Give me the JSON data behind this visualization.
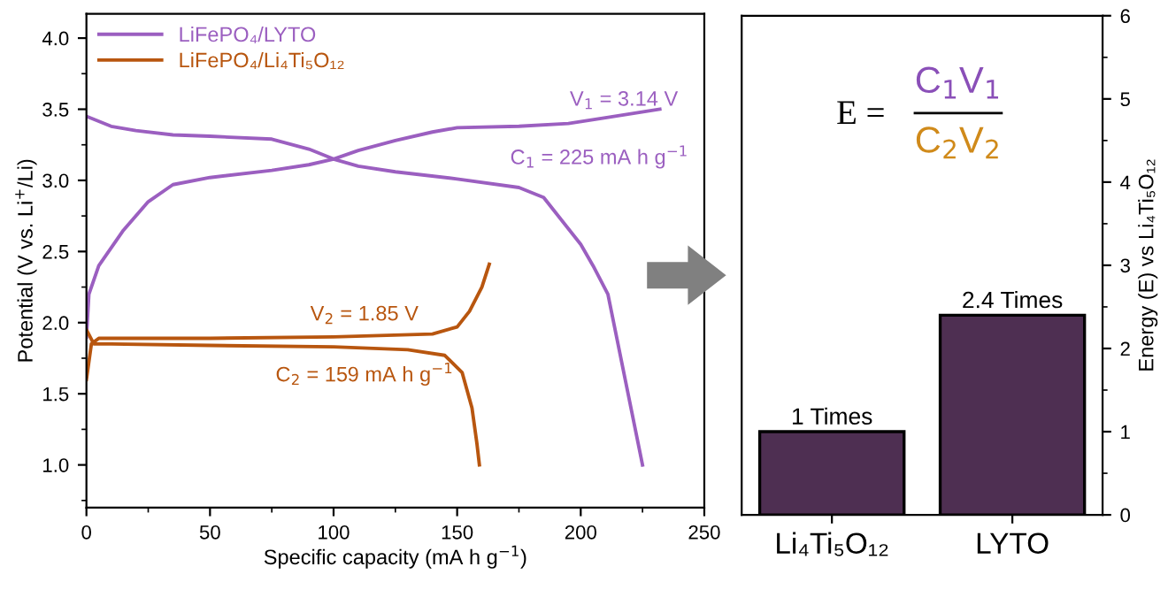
{
  "chart_data": [
    {
      "type": "line",
      "xlabel": "Specific capacity (mA h g$^{−1}$)",
      "ylabel": "Potential (V vs. Li$^{+}$/Li)",
      "xlim": [
        0,
        250
      ],
      "ylim": [
        0.7,
        4.17
      ],
      "xticks": [
        0,
        50,
        100,
        150,
        200,
        250
      ],
      "yticks": [
        {
          "value": 1,
          "label": "1.0"
        },
        1.5,
        {
          "value": 2,
          "label": "2.0"
        },
        2.5,
        {
          "value": 3,
          "label": "3.0"
        },
        3.5,
        {
          "value": 4,
          "label": "4.0"
        }
      ],
      "legend": "top left",
      "grid": false,
      "marker": "none",
      "line_style": "solid",
      "series": [
        {
          "name": "LiFePO₄/LYTO",
          "color": "#9b5fc0",
          "x": [
            0,
            1,
            5,
            15,
            25,
            35,
            50,
            75,
            90,
            100,
            110,
            125,
            140,
            150,
            175,
            195,
            210,
            232
          ],
          "values": [
            1.9,
            2.2,
            2.4,
            2.65,
            2.85,
            2.97,
            3.02,
            3.07,
            3.11,
            3.15,
            3.21,
            3.28,
            3.34,
            3.37,
            3.38,
            3.4,
            3.44,
            3.5
          ]
        },
        {
          "color": "#9b5fc0",
          "x": [
            0,
            10,
            20,
            35,
            50,
            75,
            90,
            100,
            110,
            125,
            150,
            175,
            185,
            200,
            205,
            211,
            218,
            225
          ],
          "values": [
            3.45,
            3.38,
            3.35,
            3.32,
            3.31,
            3.29,
            3.22,
            3.15,
            3.1,
            3.06,
            3.01,
            2.95,
            2.88,
            2.55,
            2.4,
            2.2,
            1.6,
            1.0
          ]
        },
        {
          "name": "LiFePO₄/Li₄Ti₅O₁₂",
          "color": "#b8560f",
          "x": [
            0,
            2,
            5,
            10,
            50,
            100,
            140,
            150,
            155,
            160,
            163
          ],
          "values": [
            1.6,
            1.85,
            1.89,
            1.89,
            1.89,
            1.9,
            1.92,
            1.97,
            2.08,
            2.25,
            2.41
          ]
        },
        {
          "color": "#b8560f",
          "x": [
            0,
            3,
            10,
            50,
            100,
            130,
            145,
            152,
            156,
            158,
            159
          ],
          "values": [
            1.95,
            1.85,
            1.85,
            1.84,
            1.83,
            1.81,
            1.77,
            1.65,
            1.4,
            1.15,
            1.0
          ]
        }
      ],
      "annotations": [
        "V$_{1}$ = 3.14 V",
        "C$_{1}$ = 225 mA h g$^{−1}$",
        "V$_{2}$ = 1.85 V",
        "C$_{2}$ = 159 mA h g$^{−1}$"
      ]
    },
    {
      "type": "bar",
      "categories": [
        "Li₄Ti₅O₁₂",
        "LYTO"
      ],
      "values": [
        1,
        2.4
      ],
      "colors": [
        "#4e2f52",
        "#4e2f52"
      ],
      "value_labels": [
        "1 Times",
        "2.4 Times"
      ],
      "ylabel": "Energy (E) vs Li₄Ti₅O₁₂",
      "ylim": [
        0,
        6
      ],
      "yticks": [
        0,
        1,
        2,
        3,
        4,
        5,
        6
      ],
      "grid": false,
      "annotations": [
        "E =",
        "C$_{1}$V$_{1}$",
        "C$_{2}$V$_{2}$"
      ]
    }
  ]
}
